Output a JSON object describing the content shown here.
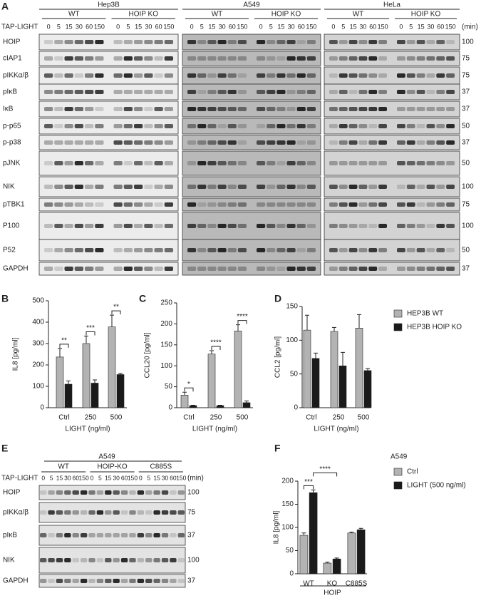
{
  "panel_labels": [
    "A",
    "B",
    "C",
    "D",
    "E",
    "F"
  ],
  "blot_a": {
    "treatment": "TAP-LIGHT",
    "unit": "(min)",
    "cell_lines": [
      "Hep3B",
      "A549",
      "HeLa"
    ],
    "genotypes": [
      "WT",
      "HOIP KO"
    ],
    "timepoints": [
      "0",
      "5",
      "15",
      "30",
      "60",
      "150"
    ],
    "rows": [
      {
        "name": "HOIP",
        "mw": 100
      },
      {
        "name": "cIAP1",
        "mw": 75
      },
      {
        "name": "pIKKα/β",
        "mw": 75
      },
      {
        "name": "pIκB",
        "mw": 37
      },
      {
        "name": "IκB",
        "mw": 37
      },
      {
        "name": "p-p65",
        "mw": 50
      },
      {
        "name": "p-p38",
        "mw": 37
      },
      {
        "name": "pJNK",
        "mw": 50
      },
      {
        "name": "NIK",
        "mw": 100
      },
      {
        "name": "pTBK1",
        "mw": 75
      },
      {
        "name": "P100",
        "mw": 100
      },
      {
        "name": "P52",
        "mw": 50
      },
      {
        "name": "GAPDH",
        "mw": 37
      }
    ]
  },
  "blot_e": {
    "title": "A549",
    "treatment": "TAP-LIGHT",
    "unit": "(min)",
    "genotypes": [
      "WT",
      "HOIP-KO",
      "C885S"
    ],
    "timepoints": [
      "0",
      "5",
      "15",
      "30",
      "60",
      "150"
    ],
    "rows": [
      {
        "name": "HOIP",
        "mw": 100
      },
      {
        "name": "pIKKα/β",
        "mw": 75
      },
      {
        "name": "pIκB",
        "mw": 37
      },
      {
        "name": "NIK",
        "mw": 100
      },
      {
        "name": "GAPDH",
        "mw": 37
      }
    ]
  },
  "chart_data": [
    {
      "type": "bar",
      "ylabel": "IL8 [pg/ml]",
      "xlabel": "LIGHT (ng/ml)",
      "categories": [
        "Ctrl",
        "250",
        "500"
      ],
      "series": [
        {
          "color": "#b3b3b3",
          "values": [
            237,
            300,
            378
          ],
          "errors": [
            40,
            35,
            55
          ]
        },
        {
          "color": "#1a1a1a",
          "values": [
            110,
            115,
            155
          ],
          "errors": [
            15,
            15,
            5
          ]
        }
      ],
      "significance": [
        "**",
        "***",
        "**"
      ],
      "ylim": [
        0,
        500
      ],
      "yticks": [
        0,
        100,
        200,
        300,
        400,
        500
      ]
    },
    {
      "type": "bar",
      "ylabel": "CCL20 [pg/ml]",
      "xlabel": "LIGHT (ng/ml)",
      "categories": [
        "Ctrl",
        "250",
        "500"
      ],
      "series": [
        {
          "color": "#b3b3b3",
          "values": [
            30,
            128,
            183
          ],
          "errors": [
            7,
            8,
            15
          ]
        },
        {
          "color": "#1a1a1a",
          "values": [
            5,
            5,
            12
          ],
          "errors": [
            1,
            1,
            4
          ]
        }
      ],
      "significance": [
        "*",
        "****",
        "****"
      ],
      "ylim": [
        0,
        250
      ],
      "yticks": [
        0,
        50,
        100,
        150,
        200,
        250
      ]
    },
    {
      "type": "bar",
      "ylabel": "CCL2 [pg/ml]",
      "xlabel": "LIGHT (ng/ml)",
      "categories": [
        "Ctrl",
        "250",
        "500"
      ],
      "series": [
        {
          "name": "HEP3B WT",
          "color": "#b3b3b3",
          "values": [
            115,
            113,
            118
          ],
          "errors": [
            22,
            6,
            20
          ]
        },
        {
          "name": "HEP3B HOIP KO",
          "color": "#1a1a1a",
          "values": [
            73,
            62,
            55
          ],
          "errors": [
            8,
            20,
            3
          ]
        }
      ],
      "ylim": [
        0,
        150
      ],
      "yticks": [
        0,
        50,
        100,
        150
      ]
    },
    {
      "type": "bar",
      "title": "A549",
      "ylabel": "IL8 [pg/ml]",
      "group_label": "HOIP",
      "categories": [
        "WT",
        "KO",
        "C885S"
      ],
      "series": [
        {
          "name": "Ctrl",
          "color": "#b3b3b3",
          "values": [
            83,
            23,
            88
          ],
          "errors": [
            5,
            2,
            2
          ]
        },
        {
          "name": "LIGHT (500 ng/ml)",
          "color": "#1a1a1a",
          "values": [
            175,
            32,
            95
          ],
          "errors": [
            6,
            2,
            3
          ]
        }
      ],
      "significance": [
        "***",
        "****"
      ],
      "ylim": [
        0,
        200
      ],
      "yticks": [
        0,
        50,
        100,
        150,
        200
      ]
    }
  ]
}
